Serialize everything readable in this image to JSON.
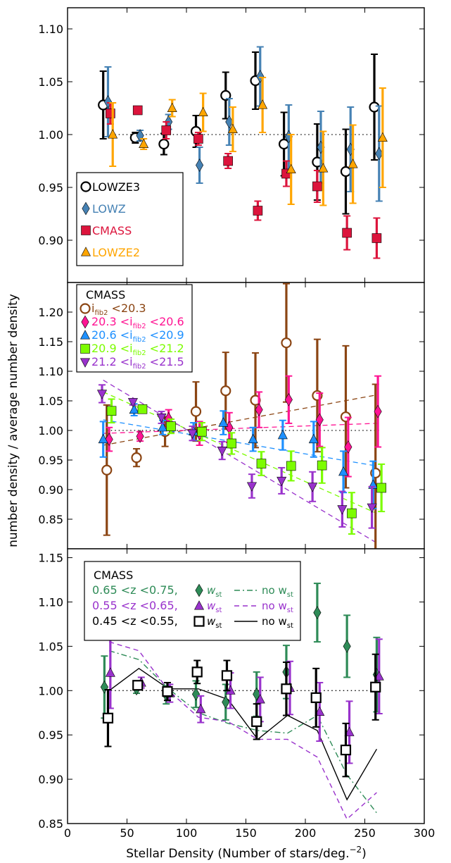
{
  "figure": {
    "xlabel": "Stellar Density (Number of stars/deg.",
    "xlabel_sup": "−2",
    "xlabel_close": ")",
    "ylabel": "number density / average number density"
  },
  "chart_data": [
    {
      "type": "scatter",
      "panel": "top",
      "xlim": [
        0,
        300
      ],
      "ylim": [
        0.86,
        1.12
      ],
      "yticks": [
        "0.90",
        "0.95",
        "1.00",
        "1.05",
        "1.10"
      ],
      "reference_line": 1.0,
      "legend_position": "lower-left",
      "series": [
        {
          "name": "LOWZE3",
          "marker": "circle-open",
          "color": "#000000",
          "x": [
            30,
            57,
            81,
            108,
            133,
            158,
            182,
            210,
            234,
            258
          ],
          "y": [
            1.028,
            0.997,
            0.991,
            1.003,
            1.037,
            1.051,
            0.991,
            0.974,
            0.965,
            1.026
          ],
          "err": [
            0.032,
            0.005,
            0.01,
            0.015,
            0.022,
            0.027,
            0.03,
            0.036,
            0.04,
            0.05
          ]
        },
        {
          "name": "LOWZ",
          "marker": "diamond",
          "color": "#4682b4",
          "x": [
            34,
            61,
            85,
            111,
            136,
            162,
            186,
            213,
            238,
            262
          ],
          "y": [
            1.031,
            0.999,
            1.012,
            0.971,
            1.012,
            1.055,
            0.998,
            0.988,
            0.986,
            0.982
          ],
          "err": [
            0.033,
            0.005,
            0.007,
            0.017,
            0.022,
            0.028,
            0.03,
            0.034,
            0.04,
            0.045
          ]
        },
        {
          "name": "CMASS",
          "marker": "square",
          "color": "#dc143c",
          "x": [
            36,
            59,
            83,
            110,
            135,
            160,
            184,
            210,
            235,
            260
          ],
          "y": [
            1.02,
            1.023,
            1.004,
            0.996,
            0.975,
            0.928,
            0.963,
            0.951,
            0.907,
            0.902
          ],
          "err": [
            0.01,
            0.002,
            0.008,
            0.006,
            0.007,
            0.009,
            0.012,
            0.015,
            0.016,
            0.019
          ]
        },
        {
          "name": "LOWZE2",
          "marker": "triangle-up",
          "color": "#ffa500",
          "x": [
            38,
            64,
            88,
            114,
            139,
            164,
            188,
            215,
            240,
            265
          ],
          "y": [
            1.0,
            0.991,
            1.025,
            1.021,
            1.005,
            1.028,
            0.967,
            0.968,
            0.972,
            0.997
          ],
          "err": [
            0.03,
            0.005,
            0.008,
            0.018,
            0.021,
            0.026,
            0.033,
            0.035,
            0.037,
            0.047
          ]
        }
      ]
    },
    {
      "type": "scatter",
      "panel": "middle",
      "title": "CMASS",
      "xlim": [
        0,
        300
      ],
      "ylim": [
        0.8,
        1.25
      ],
      "yticks": [
        "0.85",
        "0.90",
        "0.95",
        "1.00",
        "1.05",
        "1.10",
        "1.15",
        "1.20"
      ],
      "reference_line": 1.0,
      "legend_position": "top-left",
      "series": [
        {
          "name": "i_fib2 < 20.3",
          "label_pre": "i",
          "label_sub": "fib2",
          "label_post": " <20.3",
          "marker": "circle-open",
          "color": "#8b4513",
          "x": [
            33,
            58,
            82,
            108,
            133,
            158,
            184,
            210,
            234,
            259
          ],
          "y": [
            0.933,
            0.954,
            0.998,
            1.032,
            1.067,
            1.051,
            1.148,
            1.059,
            1.023,
            0.928
          ],
          "err": [
            0.11,
            0.015,
            0.025,
            0.05,
            0.065,
            0.08,
            0.1,
            0.095,
            0.12,
            0.15
          ],
          "fit": [
            [
              30,
              0.975
            ],
            [
              260,
              1.06
            ]
          ]
        },
        {
          "name": "20.3 < i_fib2 < 20.6",
          "label_pre": "20.3 <i",
          "label_sub": "fib2",
          "label_post": " <20.6",
          "marker": "diamond",
          "color": "#ff1493",
          "x": [
            35,
            61,
            85,
            111,
            136,
            161,
            186,
            212,
            236,
            261
          ],
          "y": [
            0.985,
            0.99,
            1.02,
            0.995,
            1.005,
            1.035,
            1.052,
            1.018,
            0.972,
            1.032
          ],
          "err": [
            0.02,
            0.008,
            0.015,
            0.02,
            0.025,
            0.03,
            0.04,
            0.045,
            0.05,
            0.06
          ],
          "fit": [
            [
              30,
              0.995
            ],
            [
              260,
              1.012
            ]
          ]
        },
        {
          "name": "20.6 < i_fib2 < 20.9",
          "label_pre": "20.6 <i",
          "label_sub": "fib2",
          "label_post": " <20.9",
          "marker": "triangle-up",
          "color": "#1e90ff",
          "x": [
            30,
            56,
            80,
            106,
            131,
            156,
            181,
            207,
            232,
            257
          ],
          "y": [
            0.985,
            1.035,
            1.005,
            0.998,
            1.013,
            0.985,
            0.992,
            0.985,
            0.93,
            0.908
          ],
          "err": [
            0.03,
            0.01,
            0.012,
            0.015,
            0.02,
            0.02,
            0.025,
            0.03,
            0.035,
            0.04
          ],
          "fit": [
            [
              30,
              1.018
            ],
            [
              260,
              0.94
            ]
          ]
        },
        {
          "name": "20.9 < i_fib2 < 21.2",
          "label_pre": "20.9 <i",
          "label_sub": "fib2",
          "label_post": " <21.2",
          "marker": "square",
          "color": "#7cfc00",
          "x": [
            37,
            63,
            87,
            113,
            138,
            163,
            188,
            214,
            239,
            264
          ],
          "y": [
            1.033,
            1.036,
            1.007,
            0.998,
            0.978,
            0.944,
            0.94,
            0.941,
            0.86,
            0.903
          ],
          "err": [
            0.02,
            0.006,
            0.012,
            0.015,
            0.018,
            0.02,
            0.025,
            0.03,
            0.035,
            0.04
          ],
          "fit": [
            [
              30,
              1.065
            ],
            [
              260,
              0.86
            ]
          ]
        },
        {
          "name": "21.2 < i_fib2 < 21.5",
          "label_pre": "21.2 <i",
          "label_sub": "fib2",
          "label_post": " <21.5",
          "marker": "triangle-down",
          "color": "#9932cc",
          "x": [
            29,
            55,
            79,
            105,
            130,
            155,
            180,
            206,
            231,
            256
          ],
          "y": [
            1.062,
            1.048,
            1.022,
            0.995,
            0.966,
            0.906,
            0.915,
            0.905,
            0.867,
            0.87
          ],
          "err": [
            0.015,
            0.005,
            0.01,
            0.012,
            0.015,
            0.02,
            0.022,
            0.025,
            0.03,
            0.035
          ],
          "fit": [
            [
              30,
              1.085
            ],
            [
              260,
              0.81
            ]
          ]
        }
      ]
    },
    {
      "type": "scatter",
      "panel": "bottom",
      "title": "CMASS",
      "xlabel": "Stellar Density (Number of stars/deg.−2)",
      "xlim": [
        0,
        300
      ],
      "xticks": [
        "0",
        "50",
        "100",
        "150",
        "200",
        "250",
        "300"
      ],
      "ylim": [
        0.85,
        1.16
      ],
      "yticks": [
        "0.85",
        "0.90",
        "0.95",
        "1.00",
        "1.05",
        "1.10",
        "1.15"
      ],
      "reference_line": 1.0,
      "legend_position": "top-left",
      "series": [
        {
          "name": "0.65 < z < 0.75",
          "label": "0.65 <z <0.75,",
          "w_label": "w",
          "w_sub": "st",
          "no_label": "no w",
          "no_sub": "st",
          "marker": "diamond",
          "color": "#2e8b57",
          "line_style": "dashdot",
          "x": [
            31,
            58,
            83,
            108,
            133,
            159,
            184,
            210,
            235,
            260
          ],
          "y": [
            1.004,
            1.002,
            0.995,
            0.996,
            0.987,
            0.996,
            1.021,
            1.088,
            1.05,
            1.018
          ],
          "err": [
            0.035,
            0.005,
            0.01,
            0.015,
            0.02,
            0.025,
            0.03,
            0.033,
            0.035,
            0.042
          ],
          "no_wst_line": [
            [
              35,
              1.045
            ],
            [
              60,
              1.035
            ],
            [
              85,
              1.002
            ],
            [
              110,
              0.975
            ],
            [
              135,
              0.963
            ],
            [
              160,
              0.955
            ],
            [
              185,
              0.952
            ],
            [
              210,
              0.972
            ],
            [
              235,
              0.905
            ],
            [
              260,
              0.862
            ]
          ]
        },
        {
          "name": "0.55 < z < 0.65",
          "label": "0.55 <z <0.65,",
          "w_label": "w",
          "w_sub": "st",
          "no_label": "no w",
          "no_sub": "st",
          "marker": "triangle-up",
          "color": "#9932cc",
          "line_style": "dashed",
          "x": [
            36,
            62,
            86,
            112,
            137,
            162,
            187,
            212,
            237,
            262
          ],
          "y": [
            1.02,
            1.009,
            0.997,
            0.979,
            1.0,
            0.99,
            1.003,
            0.976,
            0.953,
            1.016
          ],
          "err": [
            0.04,
            0.006,
            0.01,
            0.015,
            0.02,
            0.025,
            0.03,
            0.033,
            0.035,
            0.042
          ],
          "no_wst_line": [
            [
              35,
              1.055
            ],
            [
              60,
              1.045
            ],
            [
              85,
              1.0
            ],
            [
              110,
              0.97
            ],
            [
              135,
              0.965
            ],
            [
              160,
              0.945
            ],
            [
              185,
              0.945
            ],
            [
              210,
              0.925
            ],
            [
              235,
              0.855
            ],
            [
              260,
              0.885
            ]
          ]
        },
        {
          "name": "0.45 < z < 0.55",
          "label": "0.45 <z <0.55,",
          "w_label": "w",
          "w_sub": "st",
          "no_label": "no w",
          "no_sub": "st",
          "marker": "square-open",
          "color": "#000000",
          "line_style": "solid",
          "x": [
            34,
            59,
            84,
            109,
            134,
            159,
            184,
            209,
            234,
            259
          ],
          "y": [
            0.969,
            1.006,
            0.999,
            1.021,
            1.017,
            0.965,
            1.002,
            0.992,
            0.933,
            1.004
          ],
          "err": [
            0.032,
            0.005,
            0.01,
            0.013,
            0.017,
            0.02,
            0.03,
            0.033,
            0.03,
            0.037
          ],
          "no_wst_line": [
            [
              35,
              1.0
            ],
            [
              60,
              1.025
            ],
            [
              85,
              1.002
            ],
            [
              110,
              1.002
            ],
            [
              135,
              0.99
            ],
            [
              160,
              0.945
            ],
            [
              185,
              0.972
            ],
            [
              210,
              0.955
            ],
            [
              235,
              0.877
            ],
            [
              260,
              0.934
            ]
          ]
        }
      ]
    }
  ]
}
